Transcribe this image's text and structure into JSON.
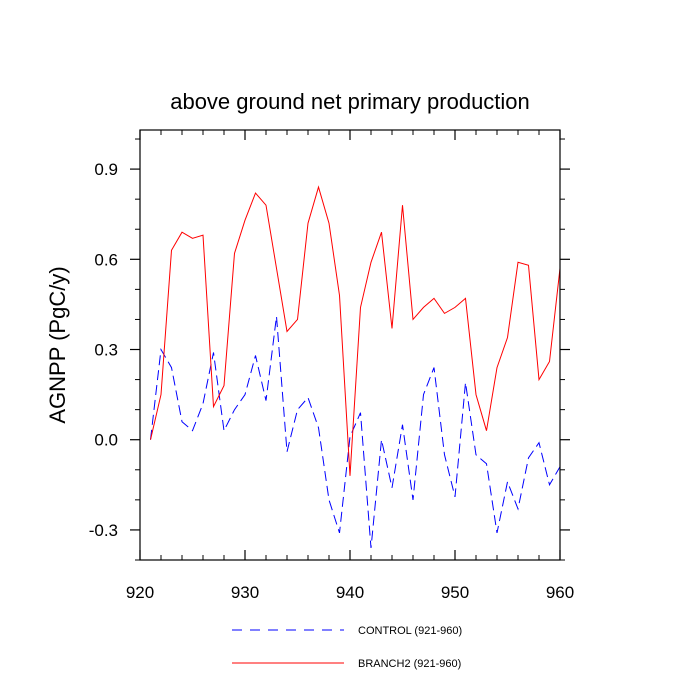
{
  "chart_data": {
    "type": "line",
    "title": "above ground net primary production",
    "xlabel": "",
    "ylabel": "AGNPP  (PgC/y)",
    "xlim": [
      921,
      960
    ],
    "ylim": [
      -0.4,
      1.03
    ],
    "x_ticks": [
      920,
      930,
      940,
      950,
      960
    ],
    "x_tick_labels": [
      "920",
      "930",
      "940",
      "950",
      "960"
    ],
    "y_ticks": [
      -0.3,
      0.0,
      0.3,
      0.6,
      0.9
    ],
    "y_tick_labels": [
      "-0.3",
      "0.0",
      "0.3",
      "0.6",
      "0.9"
    ],
    "x": [
      921,
      922,
      923,
      924,
      925,
      926,
      927,
      928,
      929,
      930,
      931,
      932,
      933,
      934,
      935,
      936,
      937,
      938,
      939,
      940,
      941,
      942,
      943,
      944,
      945,
      946,
      947,
      948,
      949,
      950,
      951,
      952,
      953,
      954,
      955,
      956,
      957,
      958,
      959,
      960
    ],
    "series": [
      {
        "name": "CONTROL (921-960)",
        "color": "#0000ff",
        "dash": "dashed",
        "values": [
          0.0,
          0.3,
          0.24,
          0.06,
          0.03,
          0.12,
          0.29,
          0.03,
          0.1,
          0.15,
          0.28,
          0.13,
          0.41,
          -0.04,
          0.1,
          0.14,
          0.04,
          -0.2,
          -0.31,
          0.01,
          0.09,
          -0.36,
          0.0,
          -0.16,
          0.05,
          -0.2,
          0.15,
          0.24,
          -0.05,
          -0.19,
          0.19,
          -0.05,
          -0.08,
          -0.31,
          -0.14,
          -0.23,
          -0.06,
          -0.01,
          -0.15,
          -0.09
        ]
      },
      {
        "name": "BRANCH2 (921-960)",
        "color": "#ff0000",
        "dash": "solid",
        "values": [
          0.0,
          0.15,
          0.63,
          0.69,
          0.67,
          0.68,
          0.11,
          0.18,
          0.62,
          0.73,
          0.82,
          0.78,
          0.57,
          0.36,
          0.4,
          0.72,
          0.84,
          0.72,
          0.48,
          -0.12,
          0.44,
          0.59,
          0.69,
          0.37,
          0.78,
          0.4,
          0.44,
          0.47,
          0.42,
          0.44,
          0.47,
          0.15,
          0.03,
          0.24,
          0.34,
          0.59,
          0.58,
          0.2,
          0.26,
          0.57
        ]
      }
    ],
    "legend": "below"
  }
}
